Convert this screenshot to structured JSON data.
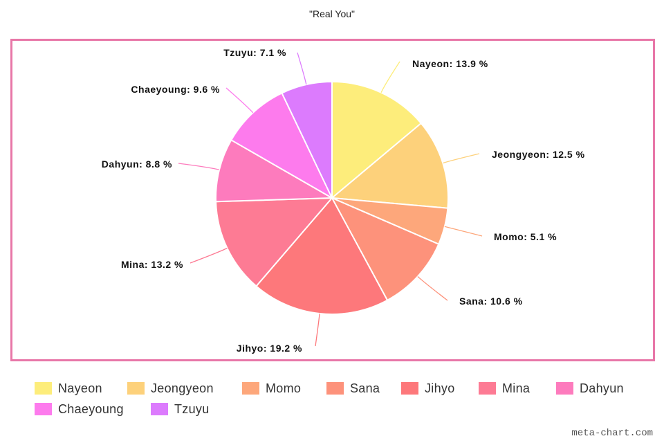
{
  "chart_data": {
    "type": "pie",
    "title": "\"Real You\"",
    "legend_position": "bottom",
    "slices": [
      {
        "name": "Nayeon",
        "value": 13.9,
        "label": "Nayeon: 13.9 %",
        "color": "#fded7b"
      },
      {
        "name": "Jeongyeon",
        "value": 12.5,
        "label": "Jeongyeon: 12.5 %",
        "color": "#fdd17b"
      },
      {
        "name": "Momo",
        "value": 5.1,
        "label": "Momo: 5.1 %",
        "color": "#fda77b"
      },
      {
        "name": "Sana",
        "value": 10.6,
        "label": "Sana: 10.6 %",
        "color": "#fd927b"
      },
      {
        "name": "Jihyo",
        "value": 19.2,
        "label": "Jihyo: 19.2 %",
        "color": "#fd787b"
      },
      {
        "name": "Mina",
        "value": 13.2,
        "label": "Mina: 13.2 %",
        "color": "#fd7b94"
      },
      {
        "name": "Dahyun",
        "value": 8.8,
        "label": "Dahyun: 8.8 %",
        "color": "#fd7bbd"
      },
      {
        "name": "Chaeyoung",
        "value": 9.6,
        "label": "Chaeyoung: 9.6 %",
        "color": "#fd7bed"
      },
      {
        "name": "Tzuyu",
        "value": 7.1,
        "label": "Tzuyu: 7.1 %",
        "color": "#dc7bfd"
      }
    ]
  },
  "frame_color": "#e877a8",
  "watermark": "meta-chart.com"
}
